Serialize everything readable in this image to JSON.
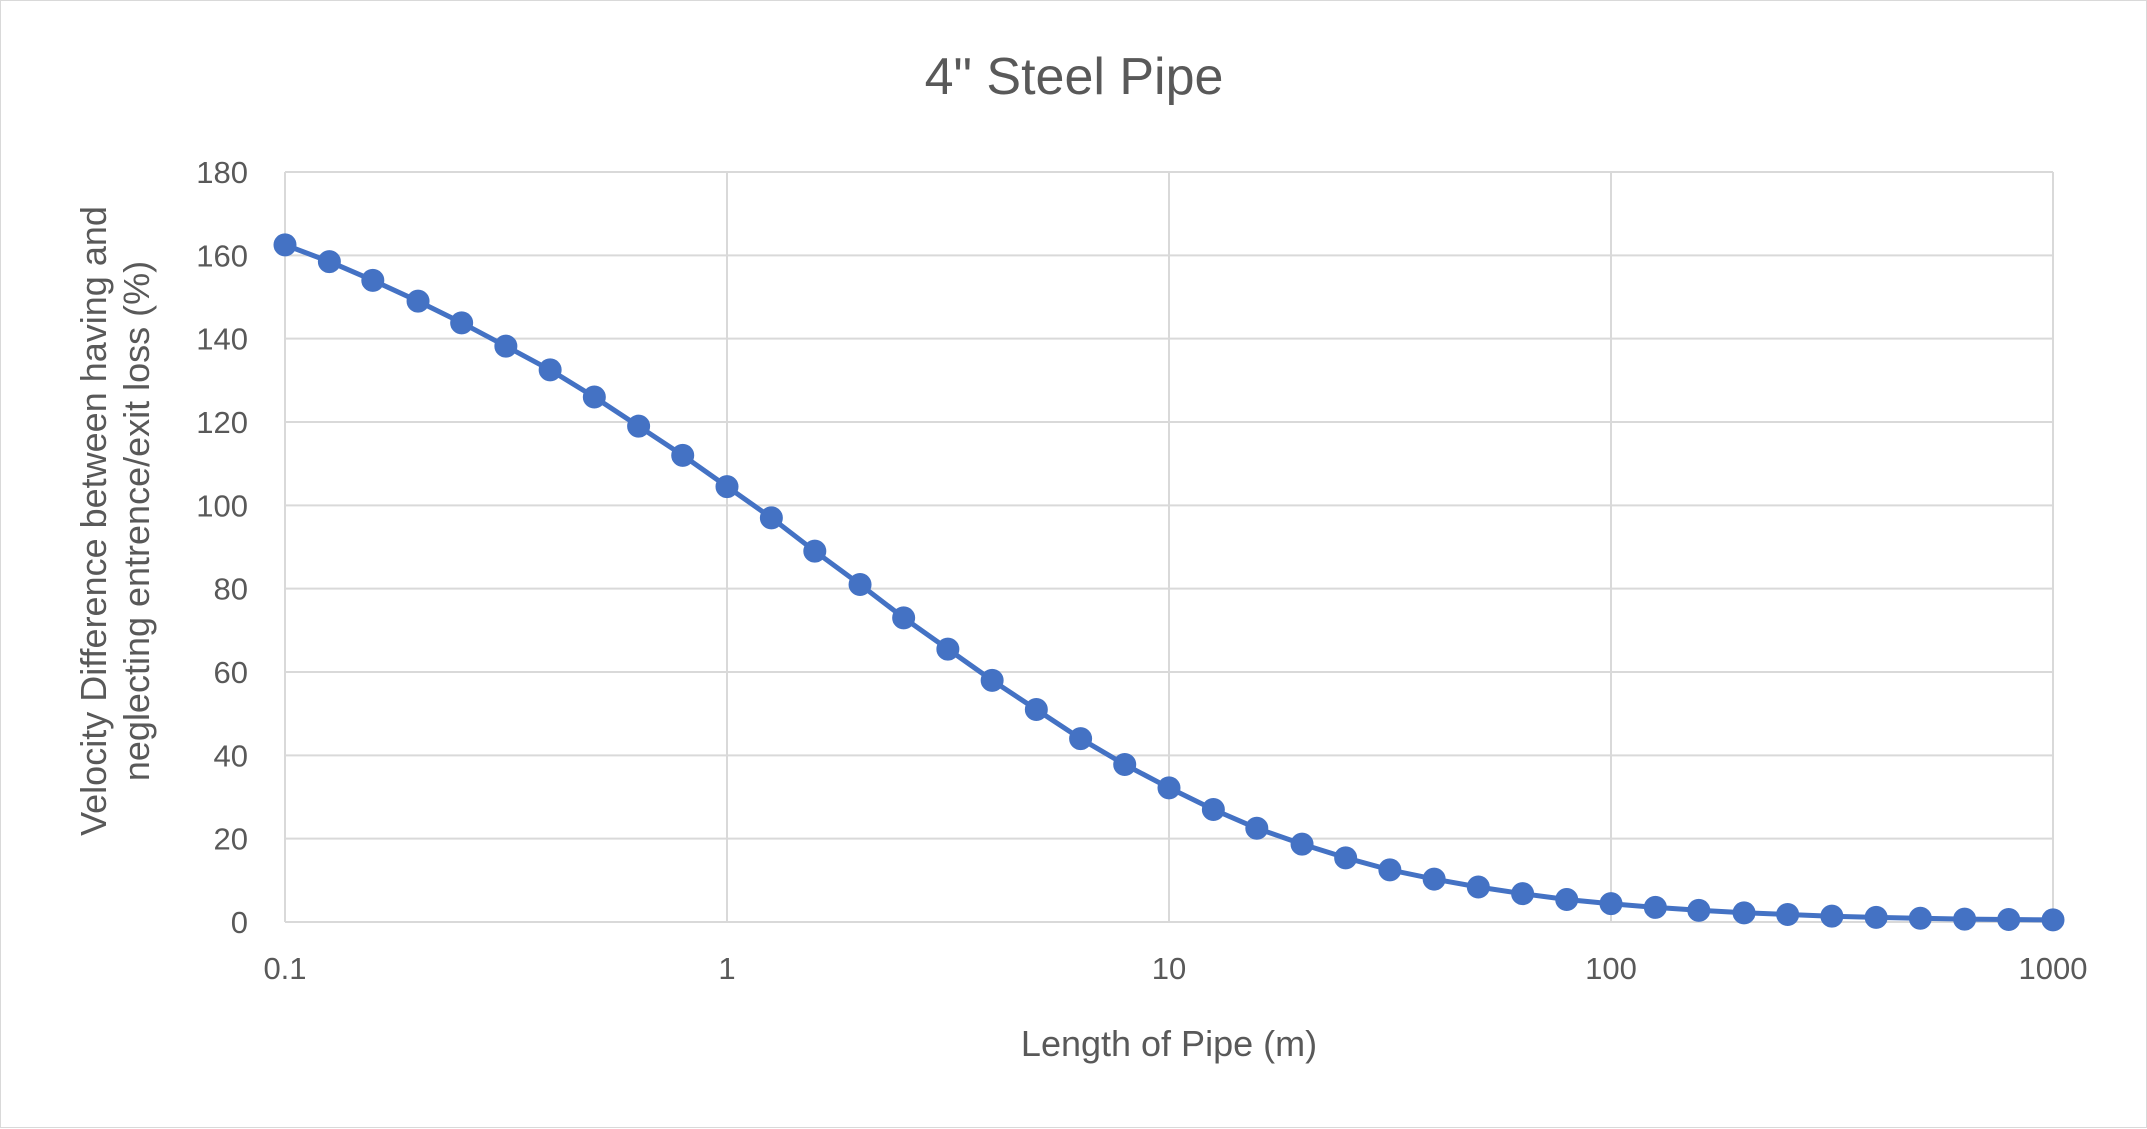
{
  "chart_data": {
    "type": "line",
    "title": "4\" Steel Pipe",
    "xlabel": "Length of Pipe (m)",
    "ylabel_lines": [
      "Velocity Difference between having and",
      "neglecting entrence/exit loss (%)"
    ],
    "x_scale": "log",
    "xlim": [
      0.1,
      1000
    ],
    "ylim": [
      0,
      180
    ],
    "x_ticks": [
      0.1,
      1,
      10,
      100,
      1000
    ],
    "x_tick_labels": [
      "0.1",
      "1",
      "10",
      "100",
      "1000"
    ],
    "y_ticks": [
      0,
      20,
      40,
      60,
      80,
      100,
      120,
      140,
      160,
      180
    ],
    "y_tick_labels": [
      "0",
      "20",
      "40",
      "60",
      "80",
      "100",
      "120",
      "140",
      "160",
      "180"
    ],
    "grid": true,
    "markers": true,
    "colors": {
      "series": "#4472c4",
      "grid": "#d9d9d9",
      "text": "#595959"
    },
    "x": [
      0.1,
      0.126,
      0.158,
      0.2,
      0.251,
      0.316,
      0.398,
      0.501,
      0.631,
      0.794,
      1,
      1.26,
      1.58,
      2,
      2.51,
      3.16,
      3.98,
      5.01,
      6.31,
      7.94,
      10,
      12.6,
      15.8,
      20,
      25.1,
      31.6,
      39.8,
      50.1,
      63.1,
      79.4,
      100,
      126,
      158,
      200,
      251,
      316,
      398,
      501,
      631,
      794,
      1000
    ],
    "y": [
      162.5,
      158.5,
      154,
      149,
      143.8,
      138.2,
      132.5,
      126,
      119,
      112,
      104.5,
      97,
      89,
      81,
      73,
      65.5,
      58,
      51,
      44,
      37.8,
      32.2,
      27,
      22.5,
      18.7,
      15.4,
      12.5,
      10.3,
      8.4,
      6.8,
      5.4,
      4.4,
      3.5,
      2.8,
      2.2,
      1.8,
      1.4,
      1.1,
      0.9,
      0.7,
      0.6,
      0.5
    ]
  }
}
